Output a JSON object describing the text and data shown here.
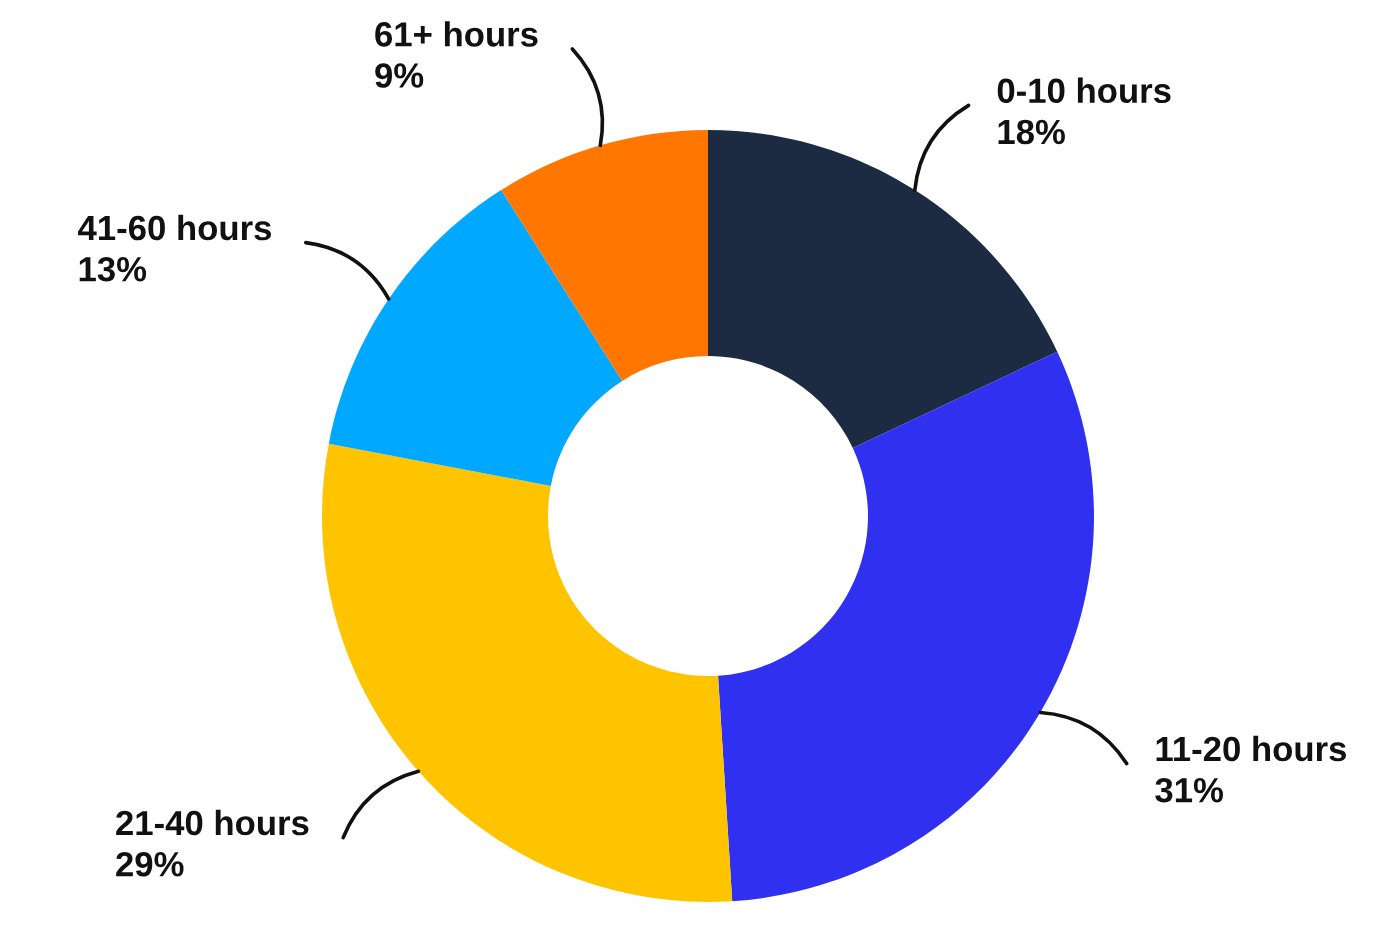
{
  "chart_data": {
    "type": "donut",
    "categories": [
      "0-10 hours",
      "11-20 hours",
      "21-40 hours",
      "41-60 hours",
      "61+ hours"
    ],
    "values": [
      18,
      31,
      29,
      13,
      9
    ],
    "colors": [
      "#1c2b42",
      "#3031f0",
      "#ffc400",
      "#00a9ff",
      "#ff7700"
    ],
    "value_labels": [
      "18%",
      "31%",
      "29%",
      "13%",
      "9%"
    ]
  }
}
